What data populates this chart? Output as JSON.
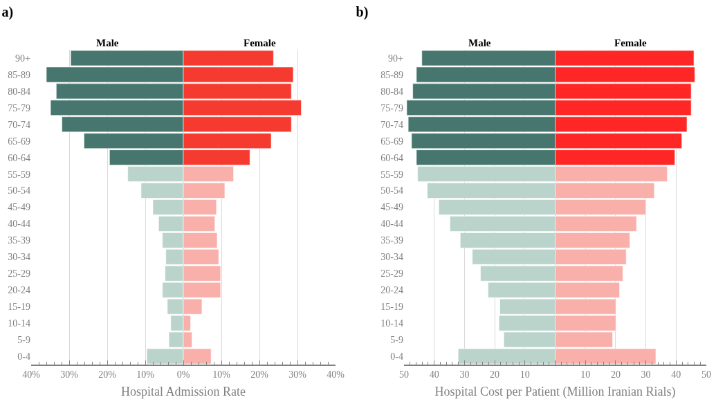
{
  "chart_data": [
    {
      "type": "bar",
      "title": "a)",
      "orientation": "horizontal",
      "stacked": true,
      "xlabel": "Hospital Admission Rate",
      "grid": "x",
      "legend": false,
      "categories": [
        "90+",
        "85-89",
        "80-84",
        "75-79",
        "70-74",
        "65-69",
        "60-64",
        "55-59",
        "50-54",
        "45-49",
        "40-44",
        "35-39",
        "30-34",
        "25-29",
        "20-24",
        "15-19",
        "10-14",
        "5-9",
        "0-4"
      ],
      "xlim": [
        -40,
        40
      ],
      "xticks": [
        {
          "value": -40,
          "label": "40%"
        },
        {
          "value": -30,
          "label": "30%"
        },
        {
          "value": -20,
          "label": "20%"
        },
        {
          "value": -10,
          "label": "10%"
        },
        {
          "value": 0,
          "label": "0%"
        },
        {
          "value": 10,
          "label": "10%"
        },
        {
          "value": 20,
          "label": "20%"
        },
        {
          "value": 30,
          "label": "30%"
        },
        {
          "value": 40,
          "label": "40%"
        }
      ],
      "series": [
        {
          "name": "Male",
          "colors": [
            "#46766e",
            "#46766e",
            "#46766e",
            "#46766e",
            "#46766e",
            "#46766e",
            "#46766e",
            "#bad4cc",
            "#bad4cc",
            "#bad4cc",
            "#bad4cc",
            "#bad4cc",
            "#bad4cc",
            "#bad4cc",
            "#bad4cc",
            "#bad4cc",
            "#bad4cc",
            "#bad4cc",
            "#bad4cc"
          ],
          "values": [
            -29.6,
            -36.0,
            -33.4,
            -34.9,
            -31.9,
            -26.1,
            -19.4,
            -14.6,
            -11.1,
            -8.0,
            -6.5,
            -5.5,
            -4.6,
            -4.8,
            -5.5,
            -4.2,
            -3.3,
            -3.8,
            -9.6
          ]
        },
        {
          "name": "Female",
          "colors": [
            "#f53a2f",
            "#f53a2f",
            "#f53a2f",
            "#f53a2f",
            "#f53a2f",
            "#f53a2f",
            "#f53a2f",
            "#f9afaa",
            "#f9afaa",
            "#f9afaa",
            "#f9afaa",
            "#f9afaa",
            "#f9afaa",
            "#f9afaa",
            "#f9afaa",
            "#f9afaa",
            "#f9afaa",
            "#f9afaa",
            "#f9afaa"
          ],
          "values": [
            23.7,
            28.9,
            28.4,
            31.0,
            28.4,
            23.1,
            17.5,
            13.2,
            10.9,
            8.7,
            8.3,
            8.9,
            9.3,
            9.8,
            9.8,
            4.9,
            1.9,
            2.3,
            7.3
          ]
        }
      ]
    },
    {
      "type": "bar",
      "title": "b)",
      "orientation": "horizontal",
      "stacked": true,
      "xlabel": "Hospital Cost per Patient (Million Iranian Rials)",
      "grid": "x",
      "legend": false,
      "categories": [
        "90+",
        "85-89",
        "80-84",
        "75-79",
        "70-74",
        "65-69",
        "60-64",
        "55-59",
        "50-54",
        "45-49",
        "40-44",
        "35-39",
        "30-34",
        "25-29",
        "20-24",
        "15-19",
        "10-14",
        "5-9",
        "0-4"
      ],
      "xlim": [
        -50,
        50
      ],
      "xticks": [
        {
          "value": -50,
          "label": "50"
        },
        {
          "value": -40,
          "label": "40"
        },
        {
          "value": -30,
          "label": "30"
        },
        {
          "value": -20,
          "label": "20"
        },
        {
          "value": -10,
          "label": "10"
        },
        {
          "value": 0,
          "label": null
        },
        10,
        20,
        30,
        40,
        50
      ],
      "series": [
        {
          "name": "Male",
          "colors": [
            "#46766e",
            "#46766e",
            "#46766e",
            "#46766e",
            "#46766e",
            "#46766e",
            "#46766e",
            "#bad4cc",
            "#bad4cc",
            "#bad4cc",
            "#bad4cc",
            "#bad4cc",
            "#bad4cc",
            "#bad4cc",
            "#bad4cc",
            "#bad4cc",
            "#bad4cc",
            "#bad4cc",
            "#bad4cc"
          ],
          "values": [
            -44.1,
            -45.9,
            -47.1,
            -49.1,
            -48.6,
            -47.5,
            -45.9,
            -45.5,
            -42.3,
            -38.5,
            -34.8,
            -31.4,
            -27.4,
            -24.7,
            -22.2,
            -18.3,
            -18.6,
            -17.0,
            -32.1
          ]
        },
        {
          "name": "Female",
          "colors": [
            "#ff2626",
            "#ff2626",
            "#ff2626",
            "#ff2626",
            "#ff2626",
            "#ff2626",
            "#ff2626",
            "#f9afaa",
            "#f9afaa",
            "#f9afaa",
            "#f9afaa",
            "#f9afaa",
            "#f9afaa",
            "#f9afaa",
            "#f9afaa",
            "#f9afaa",
            "#f9afaa",
            "#f9afaa",
            "#f9afaa"
          ],
          "values": [
            45.9,
            46.2,
            45.0,
            45.0,
            43.6,
            41.9,
            39.6,
            37.1,
            32.8,
            30.0,
            26.9,
            24.7,
            23.5,
            22.4,
            21.3,
            20.1,
            20.1,
            19.0,
            33.3
          ]
        }
      ]
    }
  ]
}
